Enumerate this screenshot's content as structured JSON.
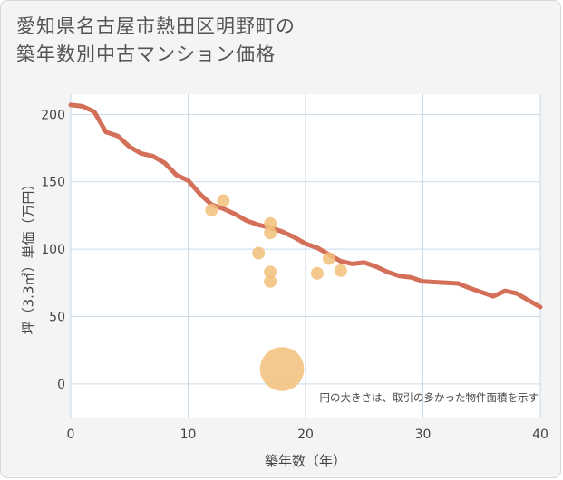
{
  "title_line1": "愛知県名古屋市熱田区明野町の",
  "title_line2": "築年数別中古マンション価格",
  "chart_data": {
    "type": "scatter",
    "xlabel": "築年数（年）",
    "ylabel": "坪（3.3㎡）単価（万円）",
    "xlim": [
      0,
      40
    ],
    "ylim": [
      -25,
      215
    ],
    "x_ticks": [
      "0",
      "10",
      "20",
      "30",
      "40"
    ],
    "y_ticks": [
      "0",
      "50",
      "100",
      "150",
      "200"
    ],
    "grid": true,
    "note": "円の大きさは、取引の多かった物件面積を示す",
    "colors": {
      "line": "#d4705a",
      "points": "#f2c07a",
      "grid": "#c9d9e6",
      "plot_bg": "#ffffff"
    },
    "points": [
      {
        "x": 12,
        "y": 129,
        "size": 1
      },
      {
        "x": 13,
        "y": 136,
        "size": 1
      },
      {
        "x": 16,
        "y": 97,
        "size": 1
      },
      {
        "x": 17,
        "y": 119,
        "size": 1
      },
      {
        "x": 17,
        "y": 112,
        "size": 1
      },
      {
        "x": 17,
        "y": 83,
        "size": 1
      },
      {
        "x": 17,
        "y": 76,
        "size": 1
      },
      {
        "x": 18,
        "y": 11,
        "size": 12
      },
      {
        "x": 21,
        "y": 82,
        "size": 1
      },
      {
        "x": 22,
        "y": 93,
        "size": 1
      },
      {
        "x": 23,
        "y": 84,
        "size": 1
      }
    ],
    "trend": {
      "x": [
        0,
        1,
        2,
        3,
        4,
        5,
        6,
        7,
        8,
        9,
        10,
        11,
        12,
        13,
        14,
        15,
        16,
        17,
        18,
        19,
        20,
        21,
        22,
        23,
        24,
        25,
        26,
        27,
        28,
        29,
        30,
        31,
        32,
        33,
        34,
        35,
        36,
        37,
        38,
        39,
        40
      ],
      "y": [
        207,
        206,
        202,
        187,
        184,
        176,
        171,
        169,
        164,
        155,
        151,
        141,
        133,
        130,
        126,
        121,
        118,
        116,
        113,
        109,
        104,
        101,
        96,
        91,
        89,
        90,
        87,
        83,
        80,
        79,
        76,
        75.5,
        75,
        74.5,
        71,
        68,
        65,
        69,
        67,
        62,
        57
      ]
    }
  }
}
